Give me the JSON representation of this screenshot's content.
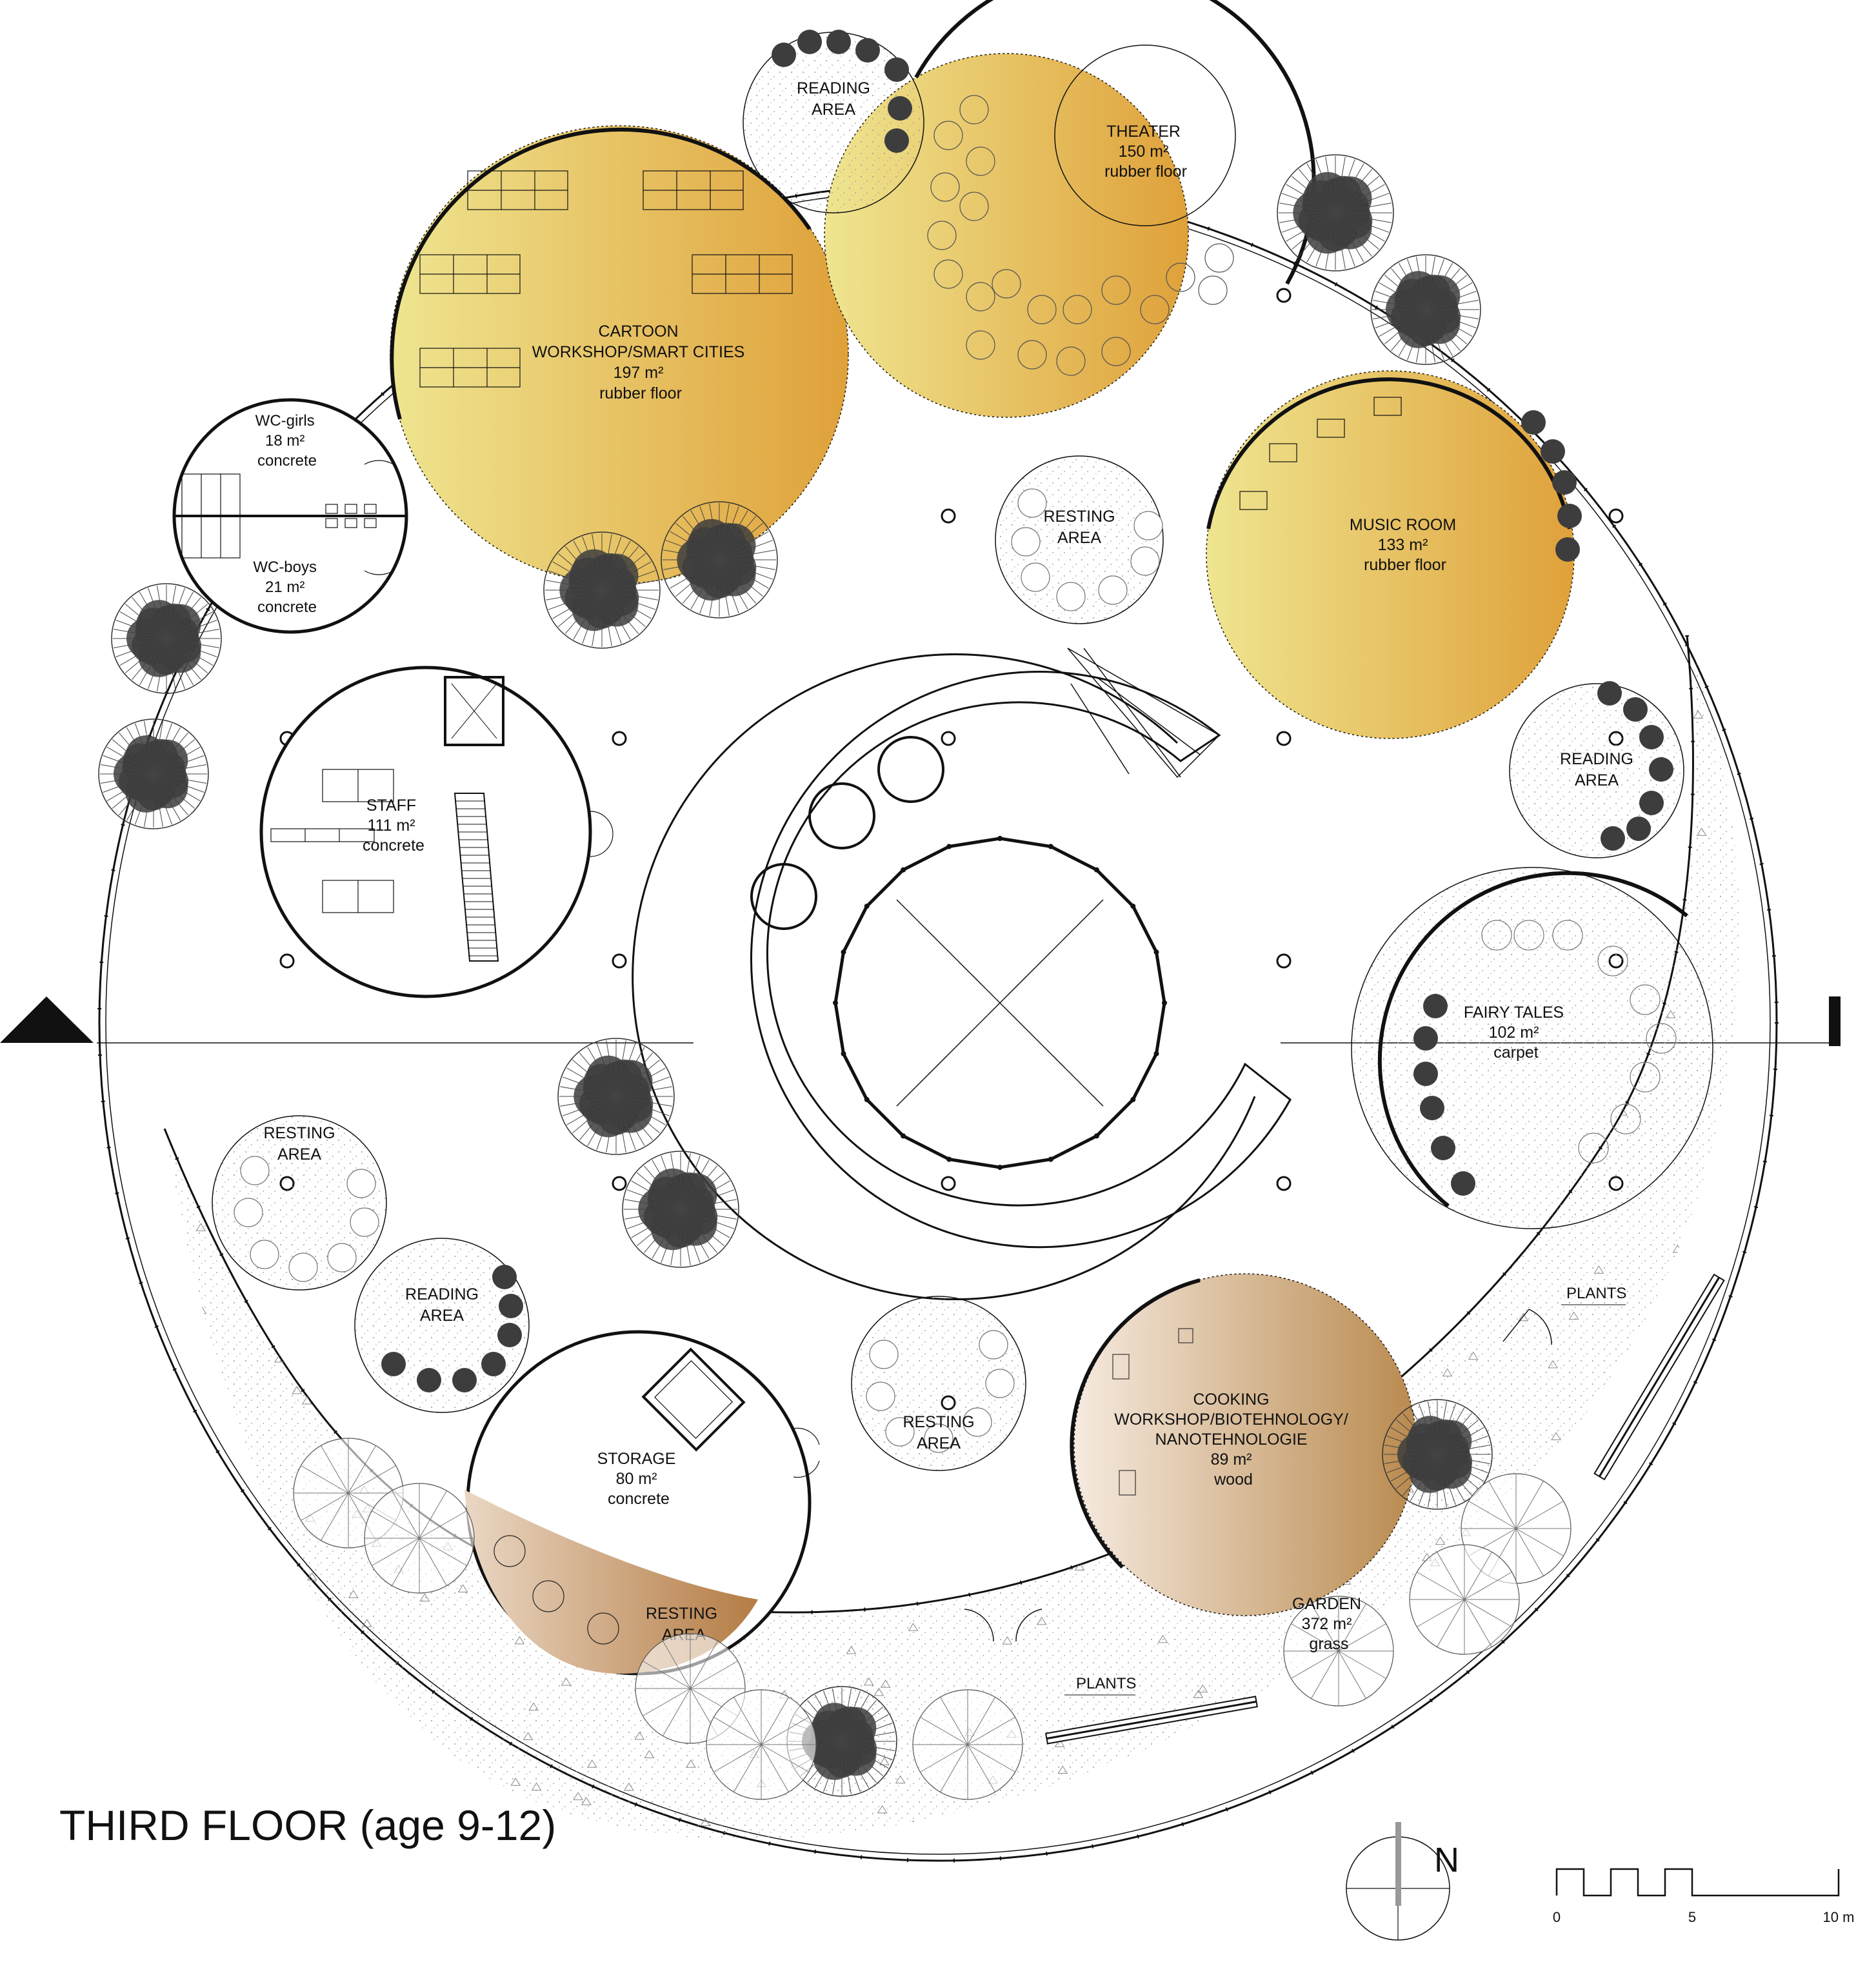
{
  "title": "THIRD FLOOR (age 9-12)",
  "rooms": [
    {
      "id": "cartoon",
      "lines": [
        "CARTOON",
        "WORKSHOP/SMART CITIES",
        "197 m²",
        "rubber floor"
      ]
    },
    {
      "id": "theater",
      "lines": [
        "THEATER",
        "150 m²",
        "rubber floor"
      ]
    },
    {
      "id": "music",
      "lines": [
        "MUSIC ROOM",
        "133 m²",
        "rubber floor"
      ]
    },
    {
      "id": "wc-girls",
      "lines": [
        "WC-girls",
        "18 m²",
        "concrete"
      ]
    },
    {
      "id": "wc-boys",
      "lines": [
        "WC-boys",
        "21 m²",
        "concrete"
      ]
    },
    {
      "id": "staff",
      "lines": [
        "STAFF",
        "111 m²",
        "concrete"
      ]
    },
    {
      "id": "fairy",
      "lines": [
        "FAIRY TALES",
        "102 m²",
        "carpet"
      ]
    },
    {
      "id": "storage",
      "lines": [
        "STORAGE",
        "80 m²",
        "concrete"
      ]
    },
    {
      "id": "cooking",
      "lines": [
        "COOKING",
        "WORKSHOP/BIOTEHNOLOGY/",
        "NANOTEHNOLOGIE",
        "89 m²",
        "wood"
      ]
    },
    {
      "id": "garden",
      "lines": [
        "GARDEN",
        "372 m²",
        "grass"
      ]
    }
  ],
  "areas": [
    {
      "id": "reading-top",
      "lines": [
        "READING",
        "AREA"
      ]
    },
    {
      "id": "resting-center",
      "lines": [
        "RESTING",
        "AREA"
      ]
    },
    {
      "id": "reading-right",
      "lines": [
        "READING",
        "AREA"
      ]
    },
    {
      "id": "resting-left",
      "lines": [
        "RESTING",
        "AREA"
      ]
    },
    {
      "id": "reading-left",
      "lines": [
        "READING",
        "AREA"
      ]
    },
    {
      "id": "resting-bottom",
      "lines": [
        "RESTING",
        "AREA"
      ]
    },
    {
      "id": "resting-storage",
      "lines": [
        "RESTING",
        "AREA"
      ]
    }
  ],
  "plants_labels": [
    "PLANTS",
    "PLANTS"
  ],
  "north_label": "N",
  "scale": {
    "labels": [
      "0",
      "5",
      "10 m"
    ]
  },
  "colors": {
    "gold_light": "#efe590",
    "gold_dark": "#dfa13a",
    "wood_light": "#f6eae0",
    "wood_dark": "#b98a4e",
    "tree_dark": "#3d3d3d",
    "line": "#111111"
  }
}
